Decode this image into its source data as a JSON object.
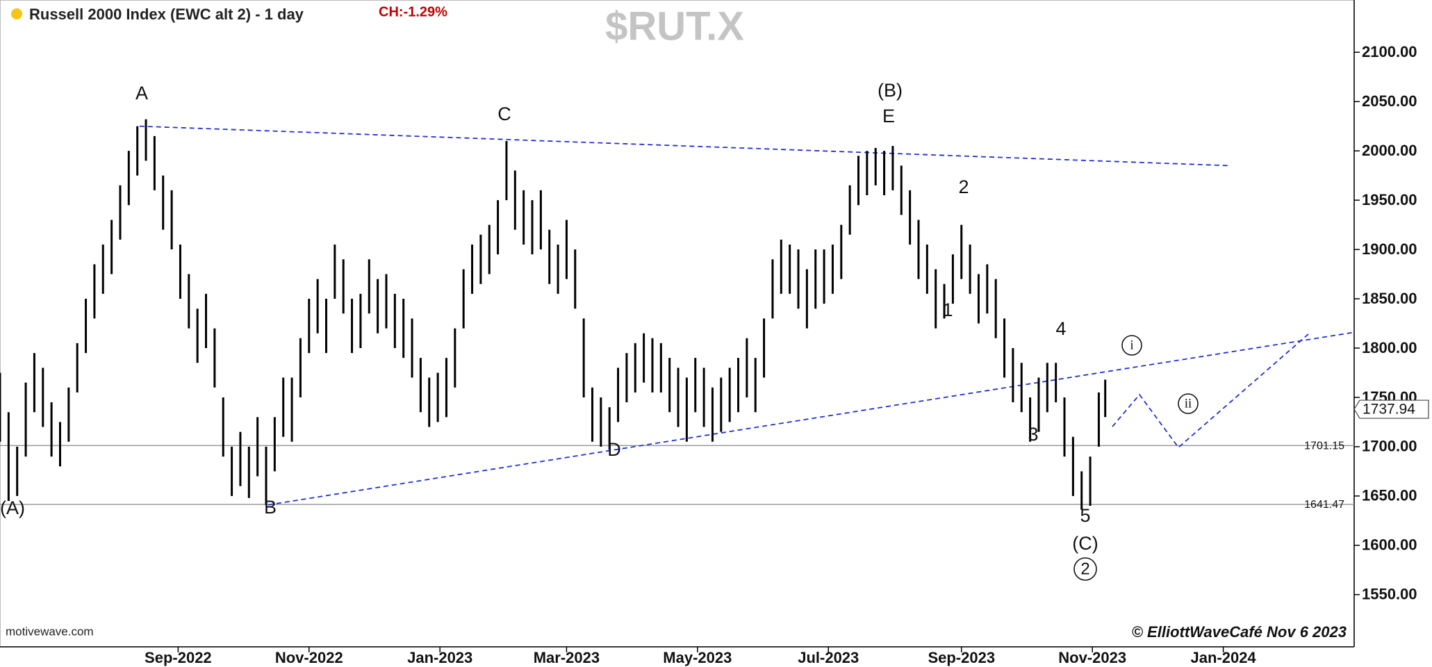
{
  "chart_data": {
    "type": "range",
    "title": "Russell 2000 Index (EWC alt 2) - 1 day",
    "change_label": "CH:-1.29%",
    "symbol": "$RUT.X",
    "source": "motivewave.com",
    "credit": "© ElliottWaveCafé Nov 6 2023",
    "color": "#000000",
    "x": [
      -83,
      -79,
      -75,
      -71,
      -67,
      -63,
      -59,
      -55,
      -51,
      -47,
      -43,
      -39,
      -35,
      -31,
      -27,
      -23,
      -19,
      -15,
      -11,
      -7,
      -3,
      1,
      5,
      9,
      13,
      17,
      21,
      25,
      29,
      33,
      37,
      41,
      45,
      49,
      53,
      57,
      61,
      65,
      69,
      73,
      77,
      81,
      85,
      89,
      93,
      97,
      101,
      105,
      109,
      113,
      117,
      121,
      125,
      129,
      133,
      137,
      141,
      145,
      149,
      153,
      157,
      161,
      165,
      169,
      173,
      177,
      181,
      185,
      189,
      193,
      197,
      201,
      205,
      209,
      213,
      217,
      221,
      225,
      229,
      233,
      237,
      241,
      245,
      249,
      253,
      257,
      261,
      265,
      269,
      273,
      277,
      281,
      285,
      289,
      293,
      297,
      301,
      305,
      309,
      313,
      317,
      321,
      325,
      329,
      333,
      337,
      341,
      345,
      349,
      353,
      357,
      361,
      365,
      369,
      373,
      377,
      381,
      385,
      389,
      393,
      397,
      401,
      405,
      409,
      413,
      417,
      421,
      425,
      429,
      432
    ],
    "high": [
      1775,
      1735,
      1700,
      1765,
      1795,
      1780,
      1745,
      1725,
      1760,
      1805,
      1850,
      1885,
      1905,
      1930,
      1965,
      2000,
      2025,
      2032,
      2015,
      1975,
      1960,
      1905,
      1875,
      1840,
      1855,
      1820,
      1750,
      1700,
      1715,
      1700,
      1730,
      1700,
      1730,
      1770,
      1770,
      1810,
      1850,
      1870,
      1850,
      1905,
      1890,
      1850,
      1855,
      1890,
      1870,
      1875,
      1855,
      1850,
      1830,
      1790,
      1770,
      1775,
      1790,
      1820,
      1880,
      1905,
      1915,
      1925,
      1950,
      2010,
      1980,
      1960,
      1950,
      1960,
      1920,
      1905,
      1930,
      1900,
      1830,
      1760,
      1750,
      1740,
      1780,
      1795,
      1805,
      1815,
      1810,
      1805,
      1790,
      1780,
      1770,
      1790,
      1780,
      1760,
      1770,
      1780,
      1790,
      1810,
      1790,
      1830,
      1890,
      1910,
      1905,
      1900,
      1880,
      1900,
      1900,
      1905,
      1925,
      1965,
      1995,
      2000,
      2003,
      2000,
      2005,
      1985,
      1960,
      1930,
      1905,
      1880,
      1865,
      1895,
      1925,
      1905,
      1875,
      1885,
      1870,
      1830,
      1800,
      1785,
      1750,
      1770,
      1785,
      1785,
      1750,
      1710,
      1675,
      1690,
      1755,
      1768
    ],
    "low": [
      1705,
      1645,
      1650,
      1690,
      1735,
      1720,
      1690,
      1680,
      1705,
      1755,
      1795,
      1830,
      1855,
      1875,
      1910,
      1945,
      1975,
      1990,
      1960,
      1920,
      1900,
      1850,
      1820,
      1785,
      1800,
      1760,
      1690,
      1650,
      1660,
      1648,
      1670,
      1641,
      1675,
      1710,
      1705,
      1750,
      1795,
      1815,
      1795,
      1850,
      1835,
      1795,
      1800,
      1835,
      1815,
      1820,
      1800,
      1790,
      1770,
      1735,
      1720,
      1725,
      1730,
      1760,
      1820,
      1855,
      1865,
      1875,
      1895,
      1950,
      1920,
      1905,
      1895,
      1900,
      1865,
      1855,
      1870,
      1840,
      1750,
      1705,
      1700,
      1697,
      1725,
      1745,
      1755,
      1765,
      1755,
      1755,
      1735,
      1720,
      1705,
      1735,
      1720,
      1705,
      1715,
      1725,
      1735,
      1750,
      1735,
      1770,
      1830,
      1855,
      1855,
      1840,
      1820,
      1840,
      1845,
      1855,
      1870,
      1915,
      1945,
      1955,
      1965,
      1955,
      1960,
      1935,
      1905,
      1870,
      1855,
      1820,
      1830,
      1845,
      1870,
      1855,
      1825,
      1835,
      1810,
      1770,
      1745,
      1735,
      1705,
      1715,
      1735,
      1745,
      1690,
      1650,
      1636,
      1640,
      1700,
      1730
    ],
    "xlim": [
      -83,
      548
    ],
    "ylim": [
      1497,
      2153
    ],
    "xticks": [
      {
        "value": 0,
        "label": "Sep-2022"
      },
      {
        "value": 61,
        "label": "Nov-2022"
      },
      {
        "value": 122,
        "label": "Jan-2023"
      },
      {
        "value": 181,
        "label": "Mar-2023"
      },
      {
        "value": 242,
        "label": "May-2023"
      },
      {
        "value": 303,
        "label": "Jul-2023"
      },
      {
        "value": 365,
        "label": "Sep-2023"
      },
      {
        "value": 426,
        "label": "Nov-2023"
      },
      {
        "value": 487,
        "label": "Jan-2024"
      }
    ],
    "yticks": [
      {
        "value": 1550,
        "label": "1550.00"
      },
      {
        "value": 1600,
        "label": "1600.00"
      },
      {
        "value": 1650,
        "label": "1650.00"
      },
      {
        "value": 1700,
        "label": "1700.00"
      },
      {
        "value": 1750,
        "label": "1750.00"
      },
      {
        "value": 1800,
        "label": "1800.00"
      },
      {
        "value": 1850,
        "label": "1850.00"
      },
      {
        "value": 1900,
        "label": "1900.00"
      },
      {
        "value": 1950,
        "label": "1950.00"
      },
      {
        "value": 2000,
        "label": "2000.00"
      },
      {
        "value": 2050,
        "label": "2050.00"
      },
      {
        "value": 2100,
        "label": "2100.00"
      }
    ],
    "hlines": [
      1701.15,
      1641.47
    ],
    "last_price": 1737.94,
    "annotations": [
      "(A)",
      "A",
      "C",
      "(B)",
      "E",
      "2",
      "1",
      "4",
      "3",
      "5",
      "(C)",
      "2",
      "B",
      "D",
      "i",
      "ii"
    ]
  }
}
